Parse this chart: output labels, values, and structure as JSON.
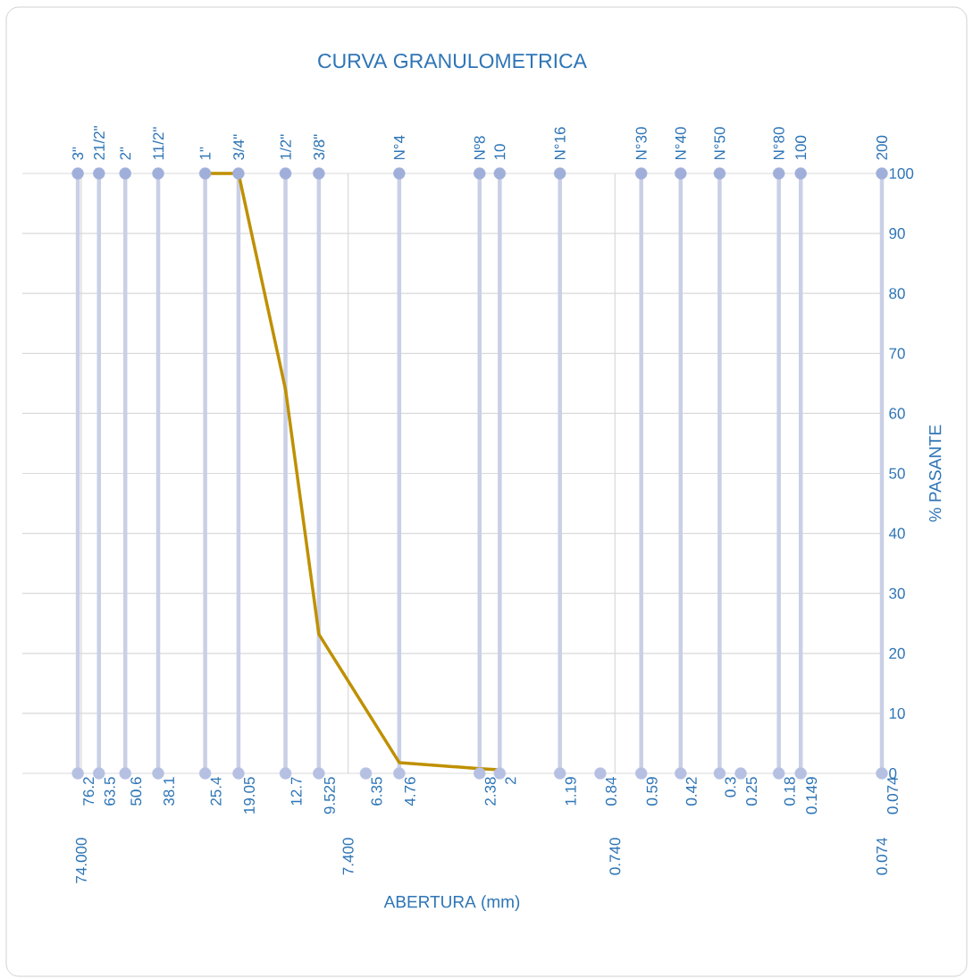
{
  "chart_data": {
    "type": "scatter",
    "title": "CURVA GRANULOMETRICA",
    "xlabel": "ABERTURA (mm)",
    "ylabel": "% PASANTE",
    "log": "x",
    "xlim": [
      123,
      0.074
    ],
    "xticks": [
      {
        "value": 74,
        "label": "74.000"
      },
      {
        "value": 7.4,
        "label": "7.400"
      },
      {
        "value": 0.74,
        "label": "0.740"
      },
      {
        "value": 0.074,
        "label": "0.074"
      }
    ],
    "ylim": [
      0,
      100
    ],
    "yticks": [
      0,
      10,
      20,
      30,
      40,
      50,
      60,
      70,
      80,
      90,
      100
    ],
    "grid": true,
    "series": [
      {
        "type": "line",
        "color": "#bf9000",
        "marker": "none",
        "x": [
          25.4,
          19.05,
          12.7,
          9.525,
          4.76,
          2.38,
          2
        ],
        "values": [
          100,
          100,
          64,
          23.2,
          1.8,
          0.8,
          0.6
        ]
      },
      {
        "type": "scatter",
        "color": "#a0afda",
        "marker": "circle",
        "x": [
          76.2,
          63.5,
          50.6,
          38.1,
          25.4,
          19.05,
          12.7,
          9.525,
          4.76,
          2.38,
          2,
          1.19,
          0.59,
          0.42,
          0.3,
          0.18,
          0.149,
          0.074
        ],
        "values": [
          100,
          100,
          100,
          100,
          100,
          100,
          100,
          100,
          100,
          100,
          100,
          100,
          100,
          100,
          100,
          100,
          100,
          100
        ]
      },
      {
        "type": "scatter",
        "color": "#b6c0e2",
        "marker": "circle",
        "x": [
          76.2,
          63.5,
          50.6,
          38.1,
          25.4,
          19.05,
          12.7,
          9.525,
          6.35,
          4.76,
          2.38,
          2,
          1.19,
          0.84,
          0.59,
          0.42,
          0.3,
          0.25,
          0.18,
          0.149,
          0.074
        ],
        "values": [
          0,
          0,
          0,
          0,
          0,
          0,
          0,
          0,
          0,
          0,
          0,
          0,
          0,
          0,
          0,
          0,
          0,
          0,
          0,
          0,
          0
        ]
      }
    ],
    "ref_lines": [
      {
        "axis": "x",
        "value": 76.2,
        "color": "#c9d0e6"
      },
      {
        "axis": "x",
        "value": 63.5,
        "color": "#c9d0e6"
      },
      {
        "axis": "x",
        "value": 50.6,
        "color": "#c9d0e6"
      },
      {
        "axis": "x",
        "value": 38.1,
        "color": "#c9d0e6"
      },
      {
        "axis": "x",
        "value": 25.4,
        "color": "#c9d0e6"
      },
      {
        "axis": "x",
        "value": 19.05,
        "color": "#c9d0e6"
      },
      {
        "axis": "x",
        "value": 12.7,
        "color": "#c9d0e6"
      },
      {
        "axis": "x",
        "value": 9.525,
        "color": "#c9d0e6"
      },
      {
        "axis": "x",
        "value": 4.76,
        "color": "#c9d0e6"
      },
      {
        "axis": "x",
        "value": 2.38,
        "color": "#c9d0e6"
      },
      {
        "axis": "x",
        "value": 2,
        "color": "#c9d0e6"
      },
      {
        "axis": "x",
        "value": 1.19,
        "color": "#c9d0e6"
      },
      {
        "axis": "x",
        "value": 0.59,
        "color": "#c9d0e6"
      },
      {
        "axis": "x",
        "value": 0.42,
        "color": "#c9d0e6"
      },
      {
        "axis": "x",
        "value": 0.3,
        "color": "#c9d0e6"
      },
      {
        "axis": "x",
        "value": 0.18,
        "color": "#c9d0e6"
      },
      {
        "axis": "x",
        "value": 0.149,
        "color": "#c9d0e6"
      },
      {
        "axis": "x",
        "value": 0.074,
        "color": "#c9d0e6"
      }
    ],
    "annotations": [
      {
        "text": "3\"",
        "x": 76.2,
        "y": 100
      },
      {
        "text": "21/2\"",
        "x": 63.5,
        "y": 100
      },
      {
        "text": "2\"",
        "x": 50.6,
        "y": 100
      },
      {
        "text": "11/2\"",
        "x": 38.1,
        "y": 100
      },
      {
        "text": "1\"",
        "x": 25.4,
        "y": 100
      },
      {
        "text": "3/4\"",
        "x": 19.05,
        "y": 100
      },
      {
        "text": "1/2\"",
        "x": 12.7,
        "y": 100
      },
      {
        "text": "3/8\"",
        "x": 9.525,
        "y": 100
      },
      {
        "text": "N°4",
        "x": 4.76,
        "y": 100
      },
      {
        "text": "Nº8",
        "x": 2.38,
        "y": 100
      },
      {
        "text": "10",
        "x": 2,
        "y": 100
      },
      {
        "text": "N°16",
        "x": 1.19,
        "y": 100
      },
      {
        "text": "N°30",
        "x": 0.59,
        "y": 100
      },
      {
        "text": "N°40",
        "x": 0.42,
        "y": 100
      },
      {
        "text": "N°50",
        "x": 0.3,
        "y": 100
      },
      {
        "text": "N°80",
        "x": 0.18,
        "y": 100
      },
      {
        "text": "100",
        "x": 0.149,
        "y": 100
      },
      {
        "text": "200",
        "x": 0.074,
        "y": 100
      },
      {
        "text": "76.2",
        "x": 76.2,
        "y": 0
      },
      {
        "text": "63.5",
        "x": 63.5,
        "y": 0
      },
      {
        "text": "50.6",
        "x": 50.6,
        "y": 0
      },
      {
        "text": "38.1",
        "x": 38.1,
        "y": 0
      },
      {
        "text": "25.4",
        "x": 25.4,
        "y": 0
      },
      {
        "text": "19.05",
        "x": 19.05,
        "y": 0
      },
      {
        "text": "12.7",
        "x": 12.7,
        "y": 0
      },
      {
        "text": "9.525",
        "x": 9.525,
        "y": 0
      },
      {
        "text": "6.35",
        "x": 6.35,
        "y": 0
      },
      {
        "text": "4.76",
        "x": 4.76,
        "y": 0
      },
      {
        "text": "2.38",
        "x": 2.38,
        "y": 0
      },
      {
        "text": "2",
        "x": 2,
        "y": 0
      },
      {
        "text": "1.19",
        "x": 1.19,
        "y": 0
      },
      {
        "text": "0.84",
        "x": 0.84,
        "y": 0
      },
      {
        "text": "0.59",
        "x": 0.59,
        "y": 0
      },
      {
        "text": "0.42",
        "x": 0.42,
        "y": 0
      },
      {
        "text": "0.3",
        "x": 0.3,
        "y": 0
      },
      {
        "text": "0.25",
        "x": 0.25,
        "y": 0
      },
      {
        "text": "0.18",
        "x": 0.18,
        "y": 0
      },
      {
        "text": "0.149",
        "x": 0.149,
        "y": 0
      },
      {
        "text": "0.074",
        "x": 0.074,
        "y": 0
      }
    ]
  }
}
